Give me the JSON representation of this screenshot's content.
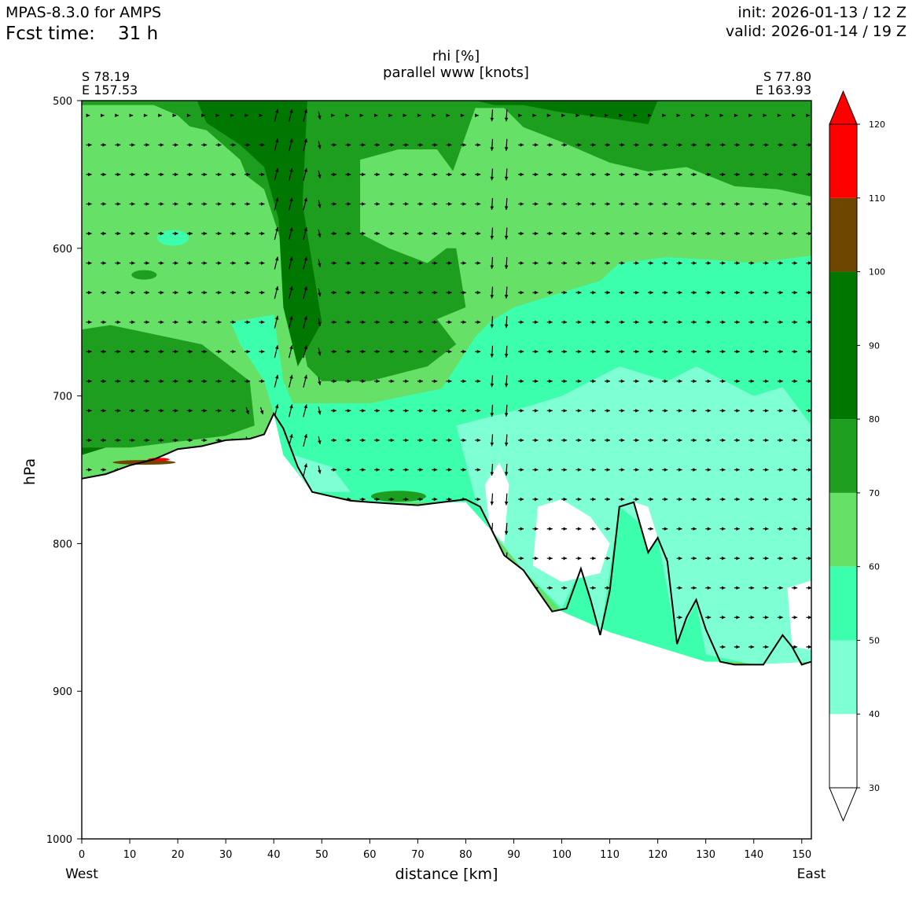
{
  "header": {
    "model": "MPAS-8.3.0 for AMPS",
    "fcst_label": "Fcst time:",
    "fcst_value": "31 h",
    "init": "init: 2026-01-13 / 12 Z",
    "valid": "valid: 2026-01-14 / 19 Z"
  },
  "corners": {
    "left_lat": "S 78.19",
    "left_lon": "E 157.53",
    "right_lat": "S 77.80",
    "right_lon": "E 163.93",
    "west": "West",
    "east": "East"
  },
  "chart_data": {
    "type": "heatmap",
    "title": "rhi [%]",
    "subtitle": "parallel www [knots]",
    "xlabel": "distance [km]",
    "ylabel": "hPa",
    "xlim": [
      0,
      152
    ],
    "ylim": [
      1000,
      500
    ],
    "y_inverted": true,
    "x_ticks": [
      0,
      10,
      20,
      30,
      40,
      50,
      60,
      70,
      80,
      90,
      100,
      110,
      120,
      130,
      140,
      150
    ],
    "y_ticks": [
      500,
      600,
      700,
      800,
      900,
      1000
    ],
    "colorbar": {
      "levels": [
        30,
        40,
        50,
        60,
        70,
        80,
        90,
        100,
        110,
        120
      ],
      "labels": [
        "30",
        "40",
        "50",
        "60",
        "70",
        "80",
        "90",
        "100",
        "110",
        "120"
      ],
      "bins": [
        {
          "from": 30,
          "to": 40,
          "color": "#ffffff"
        },
        {
          "from": 40,
          "to": 50,
          "color": "#7fffd4"
        },
        {
          "from": 50,
          "to": 60,
          "color": "#3cffad"
        },
        {
          "from": 60,
          "to": 70,
          "color": "#66e066"
        },
        {
          "from": 70,
          "to": 80,
          "color": "#1e9e1e"
        },
        {
          "from": 80,
          "to": 100,
          "color": "#007800"
        },
        {
          "from": 100,
          "to": 110,
          "color": "#6e4600"
        },
        {
          "from": 110,
          "to": 120,
          "color": "#ff0000"
        }
      ],
      "extend": "both"
    },
    "terrain": [
      [
        0,
        756
      ],
      [
        5,
        753
      ],
      [
        10,
        747
      ],
      [
        15,
        743
      ],
      [
        20,
        736
      ],
      [
        25,
        734
      ],
      [
        30,
        730
      ],
      [
        35,
        729
      ],
      [
        38,
        726
      ],
      [
        40,
        712
      ],
      [
        42,
        722
      ],
      [
        45,
        748
      ],
      [
        48,
        765
      ],
      [
        52,
        768
      ],
      [
        56,
        771
      ],
      [
        60,
        772
      ],
      [
        70,
        774
      ],
      [
        80,
        770
      ],
      [
        83,
        775
      ],
      [
        85,
        788
      ],
      [
        88,
        808
      ],
      [
        92,
        818
      ],
      [
        95,
        832
      ],
      [
        98,
        846
      ],
      [
        101,
        844
      ],
      [
        104,
        817
      ],
      [
        106,
        838
      ],
      [
        108,
        862
      ],
      [
        110,
        832
      ],
      [
        112,
        775
      ],
      [
        115,
        772
      ],
      [
        118,
        806
      ],
      [
        120,
        796
      ],
      [
        122,
        812
      ],
      [
        124,
        868
      ],
      [
        126,
        850
      ],
      [
        128,
        838
      ],
      [
        130,
        858
      ],
      [
        133,
        880
      ],
      [
        136,
        882
      ],
      [
        142,
        882
      ],
      [
        146,
        862
      ],
      [
        148,
        870
      ],
      [
        150,
        882
      ],
      [
        152,
        880
      ]
    ],
    "vector_grid": {
      "x_km": [
        1.5,
        4.5,
        7.5,
        10.5,
        13.5,
        16.5,
        19.5,
        22.5,
        25.5,
        28.5,
        31.5,
        34.5,
        37.5,
        40.5,
        43.5,
        46.5,
        49.5,
        52.5,
        55.5,
        58.5,
        61.5,
        64.5,
        67.5,
        70.5,
        73.5,
        76.5,
        79.5,
        82.5,
        85.5,
        88.5,
        91.5,
        94.5,
        97.5,
        100.5,
        103.5,
        106.5,
        109.5,
        112.5,
        115.5,
        118.5,
        121.5,
        124.5,
        127.5,
        130.5,
        133.5,
        136.5,
        139.5,
        142.5,
        145.5,
        148.5,
        151.5
      ],
      "levels_hpa": [
        510,
        530,
        550,
        570,
        590,
        610,
        630,
        650,
        670,
        690,
        710,
        730,
        750,
        770,
        790,
        810,
        830,
        850,
        870
      ]
    }
  }
}
